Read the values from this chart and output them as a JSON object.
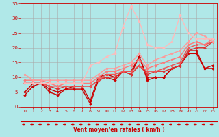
{
  "bg_color": "#b0e8e8",
  "grid_color": "#aaaaaa",
  "xlabel": "Vent moyen/en rafales ( km/h )",
  "xlabel_color": "#cc0000",
  "tick_color": "#cc0000",
  "xlim": [
    -0.5,
    23.5
  ],
  "ylim": [
    0,
    35
  ],
  "xticks": [
    0,
    1,
    2,
    3,
    4,
    5,
    6,
    7,
    8,
    9,
    10,
    11,
    12,
    13,
    14,
    15,
    16,
    17,
    18,
    19,
    20,
    21,
    22,
    23
  ],
  "yticks": [
    0,
    5,
    10,
    15,
    20,
    25,
    30,
    35
  ],
  "series": [
    {
      "x": [
        0,
        1,
        2,
        3,
        4,
        5,
        6,
        7,
        8,
        9,
        10,
        11,
        12,
        13,
        14,
        15,
        16,
        17,
        18,
        19,
        20,
        21,
        22,
        23
      ],
      "y": [
        4,
        7,
        8,
        5,
        4,
        6,
        6,
        6,
        1,
        9,
        10,
        9,
        12,
        11,
        17,
        9,
        10,
        10,
        13,
        14,
        19,
        19,
        13,
        14
      ],
      "color": "#cc0000",
      "lw": 1.0
    },
    {
      "x": [
        0,
        1,
        2,
        3,
        4,
        5,
        6,
        7,
        8,
        9,
        10,
        11,
        12,
        13,
        14,
        15,
        16,
        17,
        18,
        19,
        20,
        21,
        22,
        23
      ],
      "y": [
        5,
        8,
        8,
        6,
        5,
        6,
        7,
        7,
        2,
        10,
        11,
        10,
        12,
        12,
        17,
        10,
        10,
        10,
        13,
        14,
        18,
        18,
        13,
        13
      ],
      "color": "#cc0000",
      "lw": 1.0
    },
    {
      "x": [
        0,
        1,
        2,
        3,
        4,
        5,
        6,
        7,
        8,
        9,
        10,
        11,
        12,
        13,
        14,
        15,
        16,
        17,
        18,
        19,
        20,
        21,
        22,
        23
      ],
      "y": [
        8,
        8,
        8,
        7,
        6,
        7,
        7,
        7,
        7,
        9,
        10,
        10,
        12,
        11,
        14,
        11,
        12,
        12,
        13,
        14,
        19,
        20,
        20,
        22
      ],
      "color": "#dd3333",
      "lw": 1.0
    },
    {
      "x": [
        0,
        1,
        2,
        3,
        4,
        5,
        6,
        7,
        8,
        9,
        10,
        11,
        12,
        13,
        14,
        15,
        16,
        17,
        18,
        19,
        20,
        21,
        22,
        23
      ],
      "y": [
        8,
        8,
        8,
        7,
        7,
        7,
        7,
        7,
        7,
        9,
        11,
        11,
        12,
        12,
        14,
        12,
        12,
        13,
        14,
        15,
        20,
        21,
        21,
        22
      ],
      "color": "#ee5555",
      "lw": 1.0
    },
    {
      "x": [
        0,
        1,
        2,
        3,
        4,
        5,
        6,
        7,
        8,
        9,
        10,
        11,
        12,
        13,
        14,
        15,
        16,
        17,
        18,
        19,
        20,
        21,
        22,
        23
      ],
      "y": [
        9,
        9,
        9,
        8,
        7,
        8,
        8,
        8,
        8,
        10,
        12,
        12,
        13,
        14,
        16,
        13,
        14,
        15,
        16,
        17,
        21,
        22,
        21,
        23
      ],
      "color": "#ff7777",
      "lw": 1.0
    },
    {
      "x": [
        0,
        1,
        2,
        3,
        4,
        5,
        6,
        7,
        8,
        9,
        10,
        11,
        12,
        13,
        14,
        15,
        16,
        17,
        18,
        19,
        20,
        21,
        22,
        23
      ],
      "y": [
        11,
        9,
        9,
        9,
        9,
        9,
        9,
        9,
        9,
        11,
        13,
        13,
        14,
        15,
        18,
        14,
        16,
        17,
        18,
        19,
        22,
        25,
        24,
        22
      ],
      "color": "#ff9999",
      "lw": 1.0
    },
    {
      "x": [
        0,
        1,
        2,
        3,
        4,
        5,
        6,
        7,
        8,
        9,
        10,
        11,
        12,
        13,
        14,
        15,
        16,
        17,
        18,
        19,
        20,
        21,
        22,
        23
      ],
      "y": [
        8,
        8,
        8,
        8,
        8,
        8,
        8,
        8,
        14,
        15,
        17,
        18,
        27,
        34,
        29,
        21,
        20,
        20,
        22,
        31,
        25,
        23,
        23,
        23
      ],
      "color": "#ffbbbb",
      "lw": 1.0
    }
  ]
}
